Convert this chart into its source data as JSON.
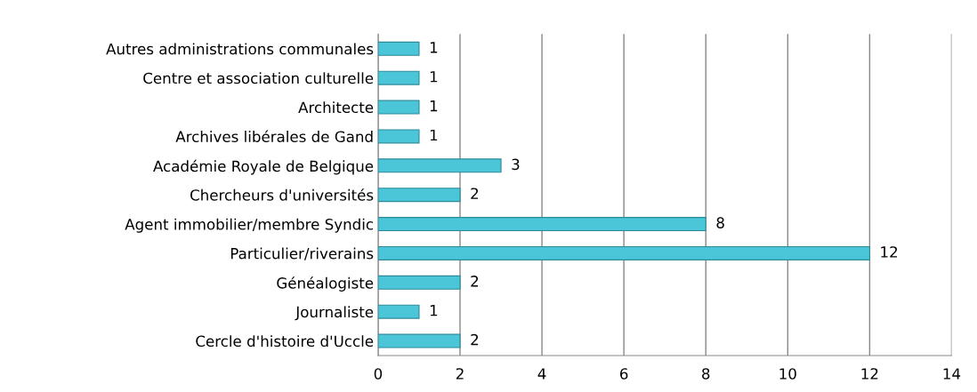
{
  "chart_data": {
    "type": "bar",
    "orientation": "horizontal",
    "categories": [
      "Autres administrations communales",
      "Centre et association culturelle",
      "Architecte",
      "Archives libérales de Gand",
      "Académie Royale de Belgique",
      "Chercheurs d'universités",
      "Agent immobilier/membre Syndic",
      "Particulier/riverains",
      "Généalogiste",
      "Journaliste",
      "Cercle d'histoire d'Uccle"
    ],
    "values": [
      1,
      1,
      1,
      1,
      3,
      2,
      8,
      12,
      2,
      1,
      2
    ],
    "color": "#4bc6d8",
    "xlim": [
      0,
      14
    ],
    "xticks": [
      0,
      2,
      4,
      6,
      8,
      10,
      12,
      14
    ],
    "grid": "x",
    "data_labels": true,
    "legend": false
  }
}
